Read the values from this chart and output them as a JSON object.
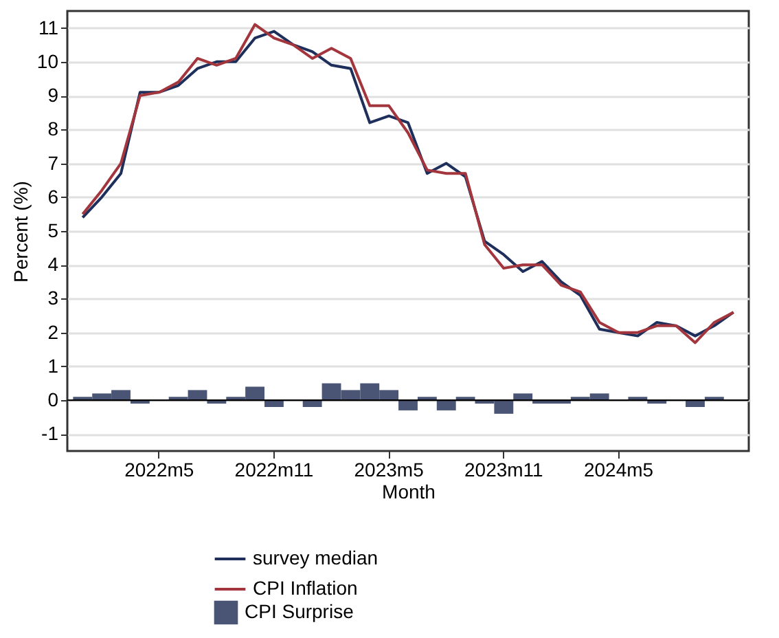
{
  "chart_data": {
    "type": "line",
    "xlabel": "Month",
    "ylabel": "Percent (%)",
    "categories": [
      null,
      null,
      null,
      null,
      "2022m5",
      null,
      null,
      null,
      null,
      null,
      "2022m11",
      null,
      null,
      null,
      null,
      null,
      "2023m5",
      null,
      null,
      null,
      null,
      null,
      "2023m11",
      null,
      null,
      null,
      null,
      null,
      "2024m5",
      null,
      null,
      null,
      null,
      null,
      null
    ],
    "series": [
      {
        "name": "survey median",
        "color": "#1f2f5c",
        "values": [
          5.4,
          6.0,
          6.7,
          9.1,
          9.1,
          9.3,
          9.8,
          10.0,
          10.0,
          10.7,
          10.9,
          10.5,
          10.3,
          9.9,
          9.8,
          8.2,
          8.4,
          8.2,
          6.7,
          7.0,
          6.6,
          4.7,
          4.3,
          3.8,
          4.1,
          3.5,
          3.1,
          2.1,
          2.0,
          1.9,
          2.3,
          2.2,
          1.9,
          2.2,
          2.6
        ]
      },
      {
        "name": "CPI Inflation",
        "color": "#a3353d",
        "values": [
          5.5,
          6.2,
          7.0,
          9.0,
          9.1,
          9.4,
          10.1,
          9.9,
          10.1,
          11.1,
          10.7,
          10.5,
          10.1,
          10.4,
          10.1,
          8.7,
          8.7,
          7.9,
          6.8,
          6.7,
          6.7,
          4.6,
          3.9,
          4.0,
          4.0,
          3.4,
          3.2,
          2.3,
          2.0,
          2.0,
          2.2,
          2.2,
          1.7,
          2.3,
          2.6
        ]
      },
      {
        "name": "CPI Surprise",
        "type": "bar",
        "color": "#4a5575",
        "values": [
          0.1,
          0.2,
          0.3,
          -0.1,
          0,
          0.1,
          0.3,
          -0.1,
          0.1,
          0.4,
          -0.2,
          0,
          -0.2,
          0.5,
          0.3,
          0.5,
          0.3,
          -0.3,
          0.1,
          -0.3,
          0.1,
          -0.1,
          -0.4,
          0.2,
          -0.1,
          -0.1,
          0.1,
          0.2,
          0,
          0.1,
          -0.1,
          0,
          -0.2,
          0.1,
          0
        ]
      }
    ],
    "ylim": [
      -1.5,
      11.5
    ],
    "yticks": [
      -1,
      0,
      1,
      2,
      3,
      4,
      5,
      6,
      7,
      8,
      9,
      10,
      11
    ],
    "ref_lines": [
      {
        "axis": "y",
        "value": 0,
        "color": "#000000"
      }
    ],
    "grid": "y",
    "legend": "bottom"
  }
}
